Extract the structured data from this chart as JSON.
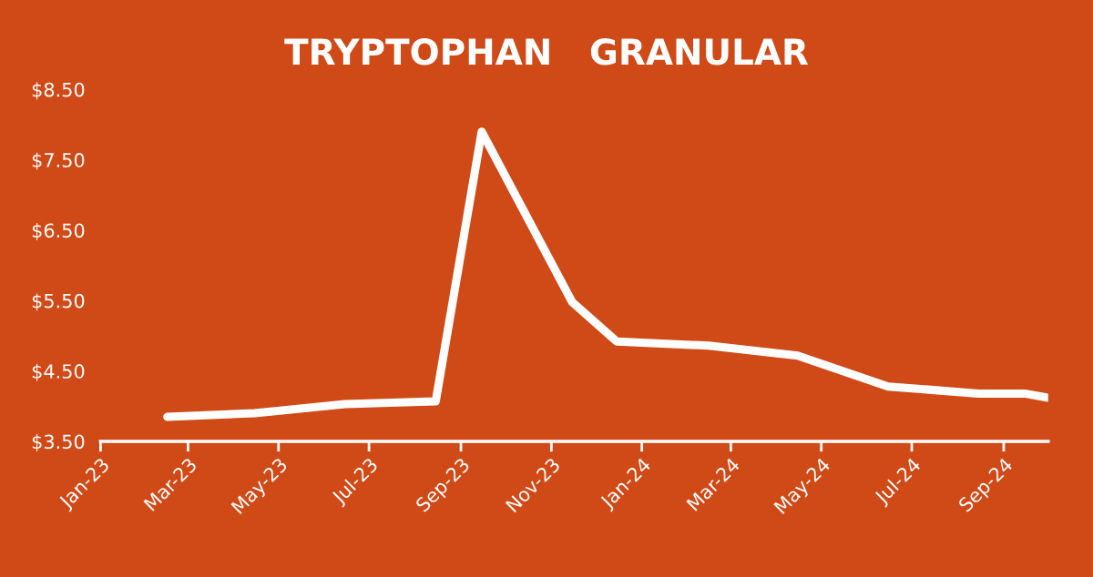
{
  "chart_data": {
    "type": "line",
    "title": "TRYPTOPHAN   GRANULAR",
    "x": [
      "2023-02-15",
      "2023-04-15",
      "2023-06-15",
      "2023-08-15",
      "2023-09-15",
      "2023-11-15",
      "2023-12-15",
      "2024-02-15",
      "2024-04-15",
      "2024-06-15",
      "2024-08-15",
      "2024-09-15",
      "2024-10-01"
    ],
    "series": [
      {
        "color": "#ffffff",
        "values": [
          3.85,
          3.9,
          4.03,
          4.07,
          7.9,
          5.48,
          4.92,
          4.86,
          4.72,
          4.28,
          4.18,
          4.18,
          4.12
        ]
      }
    ],
    "xlim": [
      "2023-01-01",
      "2024-10-01"
    ],
    "xticks": [
      {
        "value": "2023-01-01",
        "label": "Jan-23"
      },
      {
        "value": "2023-03-01",
        "label": "Mar-23"
      },
      {
        "value": "2023-05-01",
        "label": "May-23"
      },
      {
        "value": "2023-07-01",
        "label": "Jul-23"
      },
      {
        "value": "2023-09-01",
        "label": "Sep-23"
      },
      {
        "value": "2023-11-01",
        "label": "Nov-23"
      },
      {
        "value": "2024-01-01",
        "label": "Jan-24"
      },
      {
        "value": "2024-03-01",
        "label": "Mar-24"
      },
      {
        "value": "2024-05-01",
        "label": "May-24"
      },
      {
        "value": "2024-07-01",
        "label": "Jul-24"
      },
      {
        "value": "2024-09-01",
        "label": "Sep-24"
      }
    ],
    "ylim": [
      3.5,
      8.5
    ],
    "yticks": [
      {
        "value": 3.5,
        "label": "$3.50"
      },
      {
        "value": 4.5,
        "label": "$4.50"
      },
      {
        "value": 5.5,
        "label": "$5.50"
      },
      {
        "value": 6.5,
        "label": "$6.50"
      },
      {
        "value": 7.5,
        "label": "$7.50"
      },
      {
        "value": 8.5,
        "label": "$8.50"
      }
    ],
    "grid": false,
    "legend": false,
    "marker": "none",
    "line_style": "solid"
  }
}
